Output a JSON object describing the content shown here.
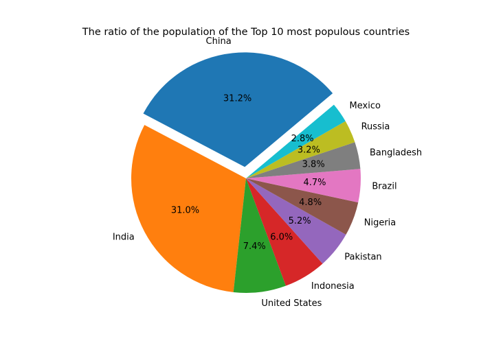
{
  "chart_data": {
    "type": "pie",
    "title": "The ratio of the population of the Top 10 most populous countries",
    "start_angle_deg": 40,
    "counterclockwise": true,
    "categories": [
      "China",
      "India",
      "United States",
      "Indonesia",
      "Pakistan",
      "Nigeria",
      "Brazil",
      "Bangladesh",
      "Russia",
      "Mexico"
    ],
    "values": [
      31.2,
      31.0,
      7.4,
      6.0,
      5.2,
      4.8,
      4.7,
      3.8,
      3.2,
      2.8
    ],
    "percent_labels": [
      "31.2%",
      "31.0%",
      "7.4%",
      "6.0%",
      "5.2%",
      "4.8%",
      "4.7%",
      "3.8%",
      "3.2%",
      "2.8%"
    ],
    "explode": [
      0.1,
      0,
      0,
      0,
      0,
      0,
      0,
      0,
      0,
      0
    ],
    "colors": [
      "#1f77b4",
      "#ff7f0e",
      "#2ca02c",
      "#d62728",
      "#9467bd",
      "#8c564b",
      "#e377c2",
      "#7f7f7f",
      "#bcbd22",
      "#17becf"
    ]
  }
}
